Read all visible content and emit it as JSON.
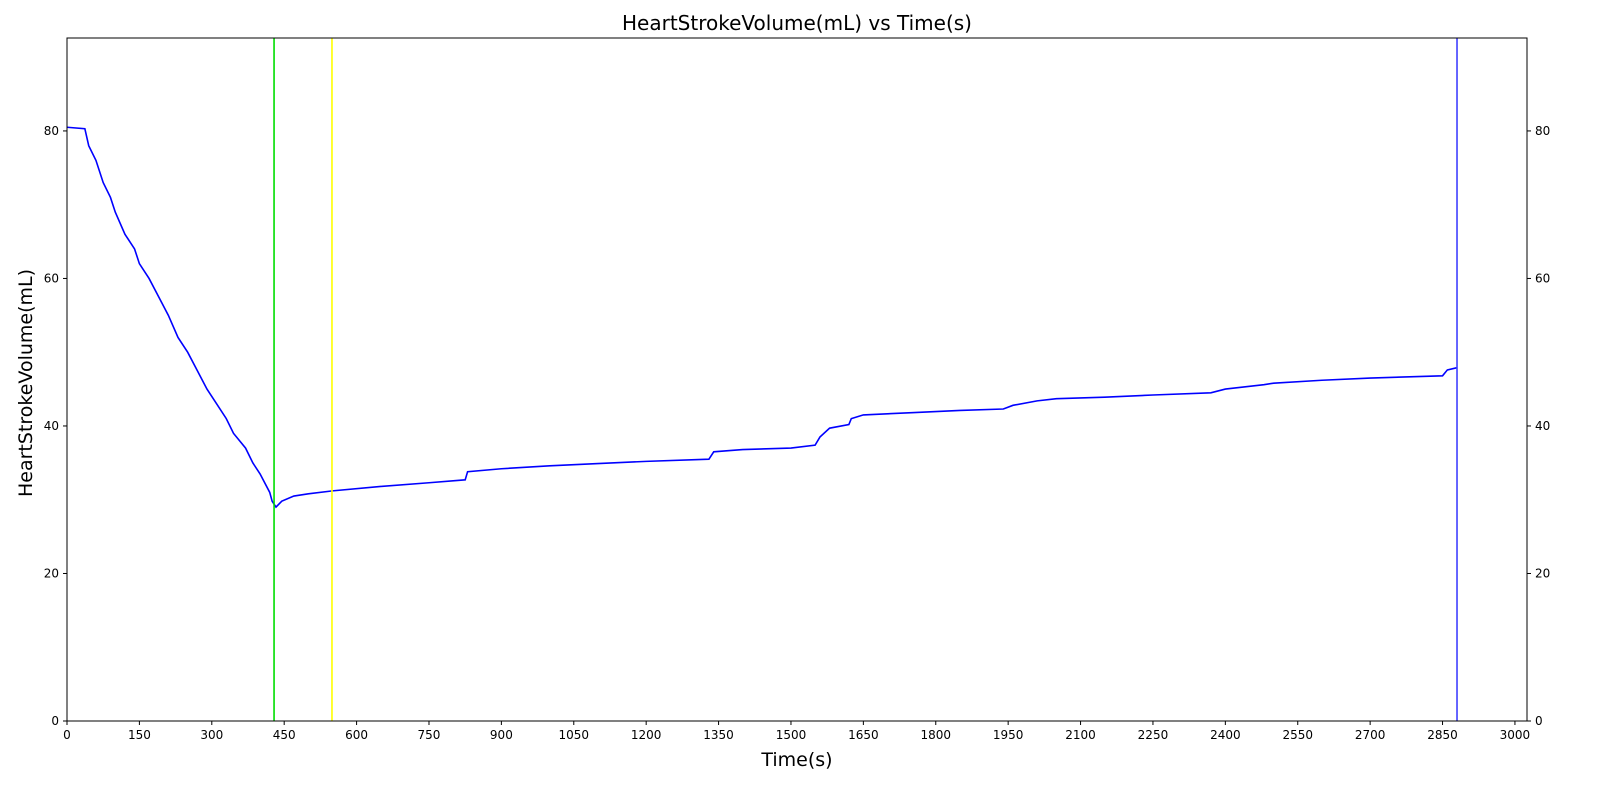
{
  "chart_data": {
    "type": "line",
    "title": "HeartStrokeVolume(mL) vs Time(s)",
    "x_label": "Time(s)",
    "y_label": "HeartStrokeVolume(mL)",
    "x": [
      0,
      37,
      45,
      60,
      75,
      90,
      100,
      120,
      140,
      150,
      170,
      190,
      210,
      230,
      250,
      270,
      290,
      310,
      330,
      345,
      370,
      385,
      400,
      420,
      425,
      433,
      445,
      470,
      500,
      550,
      650,
      750,
      825,
      830,
      900,
      1000,
      1100,
      1200,
      1330,
      1340,
      1400,
      1500,
      1550,
      1560,
      1580,
      1620,
      1625,
      1650,
      1750,
      1850,
      1940,
      1960,
      2010,
      2050,
      2150,
      2250,
      2370,
      2400,
      2480,
      2500,
      2600,
      2700,
      2850,
      2860,
      2880
    ],
    "series": [
      {
        "name": "HeartStrokeVolume(mL)",
        "color": "#0000ff",
        "values": [
          80.5,
          80.3,
          78,
          76,
          73,
          71,
          69,
          66,
          64,
          62,
          60,
          57.5,
          55,
          52,
          50,
          47.5,
          45,
          43,
          41,
          39,
          37,
          35,
          33.5,
          31,
          29.8,
          29.0,
          29.8,
          30.5,
          30.8,
          31.2,
          31.8,
          32.3,
          32.7,
          33.8,
          34.2,
          34.6,
          34.9,
          35.2,
          35.5,
          36.5,
          36.8,
          37.0,
          37.4,
          38.5,
          39.7,
          40.2,
          41.0,
          41.5,
          41.8,
          42.1,
          42.3,
          42.8,
          43.4,
          43.7,
          43.9,
          44.2,
          44.5,
          45.0,
          45.6,
          45.8,
          46.2,
          46.5,
          46.8,
          47.6,
          47.9
        ]
      }
    ],
    "vlines": [
      {
        "x": 429,
        "color": "#00dd00"
      },
      {
        "x": 549,
        "color": "#ffff00"
      },
      {
        "x": 2880,
        "color": "#4040ff"
      }
    ],
    "xlim": [
      0,
      3025
    ],
    "ylim": [
      0,
      92.6
    ],
    "y2lim": [
      0,
      92.6
    ],
    "xticks": [
      0,
      150,
      300,
      450,
      600,
      750,
      900,
      1050,
      1200,
      1350,
      1500,
      1650,
      1800,
      1950,
      2100,
      2250,
      2400,
      2550,
      2700,
      2850,
      3000
    ],
    "yticks": [
      0,
      20,
      40,
      60,
      80
    ],
    "y2ticks": [
      0,
      20,
      40,
      60,
      80
    ]
  }
}
